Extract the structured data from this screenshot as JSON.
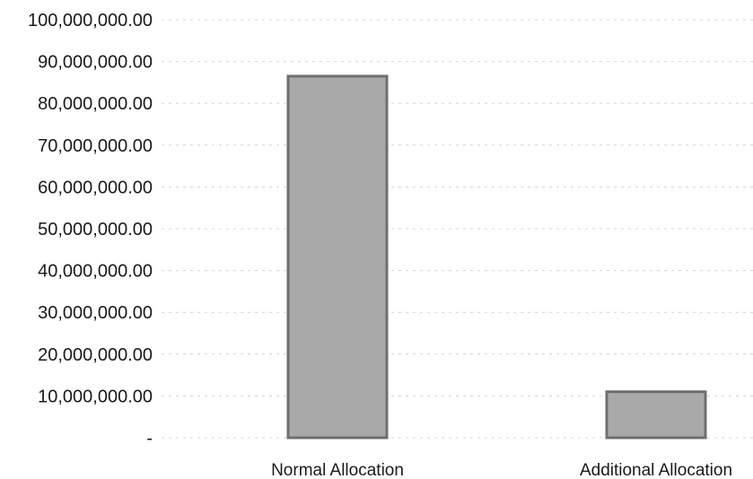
{
  "chart_data": {
    "type": "bar",
    "title": "",
    "xlabel": "",
    "ylabel": "",
    "categories": [
      "Normal Allocation",
      "Additional Allocation"
    ],
    "values": [
      86500000,
      11000000
    ],
    "ylim": [
      0,
      100000000
    ],
    "y_ticks": [
      {
        "value": 0,
        "label": "-"
      },
      {
        "value": 10000000,
        "label": "10,000,000.00"
      },
      {
        "value": 20000000,
        "label": "20,000,000.00"
      },
      {
        "value": 30000000,
        "label": "30,000,000.00"
      },
      {
        "value": 40000000,
        "label": "40,000,000.00"
      },
      {
        "value": 50000000,
        "label": "50,000,000.00"
      },
      {
        "value": 60000000,
        "label": "60,000,000.00"
      },
      {
        "value": 70000000,
        "label": "70,000,000.00"
      },
      {
        "value": 80000000,
        "label": "80,000,000.00"
      },
      {
        "value": 90000000,
        "label": "90,000,000.00"
      },
      {
        "value": 100000000,
        "label": "100,000,000.00"
      }
    ],
    "grid": true,
    "legend": "none",
    "colors": {
      "bar_fill": "#a9a9a9",
      "bar_edge": "#6f6f6f",
      "grid": "#d4d4d4",
      "text": "#1a1a1a"
    }
  }
}
